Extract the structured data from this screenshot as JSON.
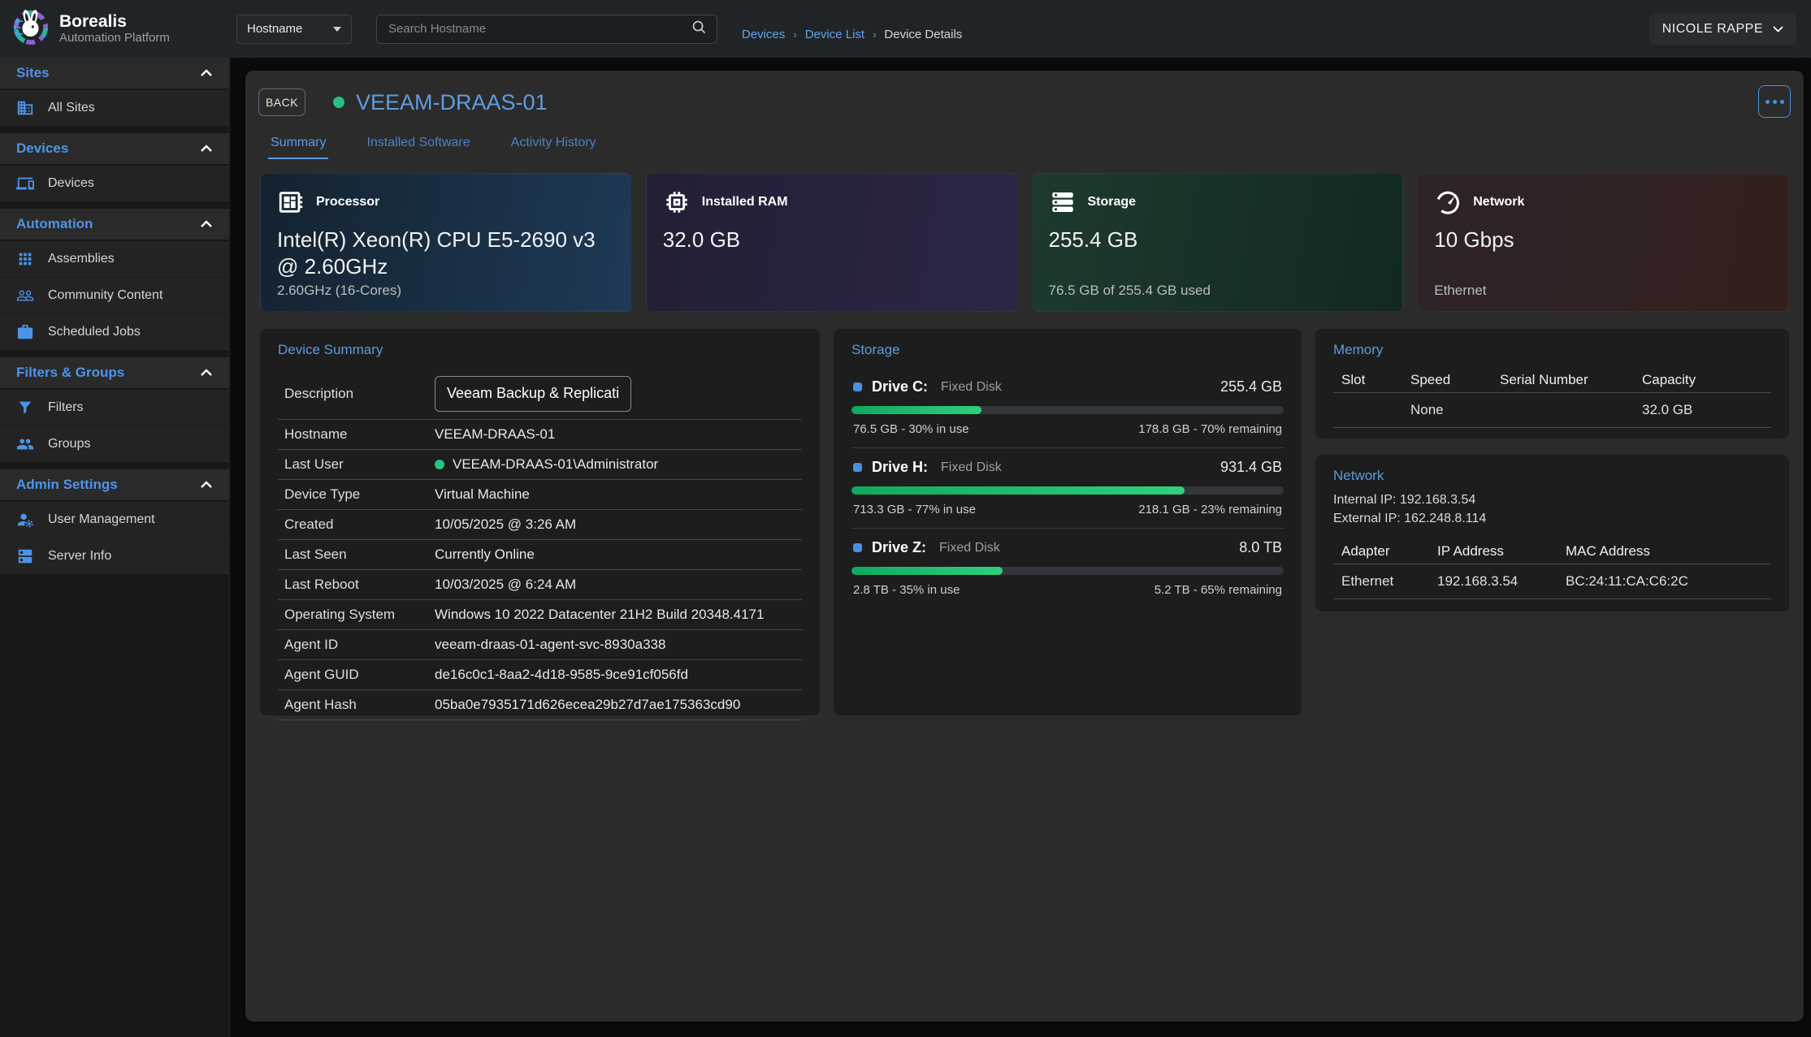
{
  "app": {
    "name": "Borealis",
    "subtitle": "Automation Platform"
  },
  "topbar": {
    "filter_dropdown": {
      "value": "Hostname"
    },
    "search": {
      "placeholder": "Search Hostname"
    },
    "breadcrumbs": [
      {
        "label": "Devices"
      },
      {
        "label": "Device List"
      },
      {
        "label": "Device Details"
      }
    ],
    "user_menu": {
      "label": "NICOLE RAPPE"
    }
  },
  "sidebar": {
    "sections": [
      {
        "title": "Sites",
        "items": [
          {
            "label": "All Sites",
            "icon": "building-icon"
          }
        ]
      },
      {
        "title": "Devices",
        "items": [
          {
            "label": "Devices",
            "icon": "devices-icon"
          }
        ]
      },
      {
        "title": "Automation",
        "items": [
          {
            "label": "Assemblies",
            "icon": "grid-icon"
          },
          {
            "label": "Community Content",
            "icon": "people-icon"
          },
          {
            "label": "Scheduled Jobs",
            "icon": "briefcase-icon"
          }
        ]
      },
      {
        "title": "Filters & Groups",
        "items": [
          {
            "label": "Filters",
            "icon": "funnel-icon"
          },
          {
            "label": "Groups",
            "icon": "group-icon"
          }
        ]
      },
      {
        "title": "Admin Settings",
        "items": [
          {
            "label": "User Management",
            "icon": "user-gear-icon"
          },
          {
            "label": "Server Info",
            "icon": "server-icon"
          }
        ]
      }
    ]
  },
  "page": {
    "back_label": "BACK",
    "device_name": "VEEAM-DRAAS-01",
    "status": "online",
    "tabs": [
      {
        "label": "Summary",
        "active": true
      },
      {
        "label": "Installed Software",
        "active": false
      },
      {
        "label": "Activity History",
        "active": false
      }
    ]
  },
  "stat_cards": [
    {
      "icon": "cpu-icon",
      "title": "Processor",
      "value": "Intel(R) Xeon(R) CPU E5-2690 v3 @ 2.60GHz",
      "subtext": "2.60GHz (16-Cores)"
    },
    {
      "icon": "ram-chip-icon",
      "title": "Installed RAM",
      "value": "32.0 GB",
      "subtext": ""
    },
    {
      "icon": "storage-stack-icon",
      "title": "Storage",
      "value": "255.4 GB",
      "subtext": "76.5 GB of 255.4 GB used"
    },
    {
      "icon": "gauge-icon",
      "title": "Network",
      "value": "10 Gbps",
      "subtext": "Ethernet"
    }
  ],
  "device_summary": {
    "title": "Device Summary",
    "description": {
      "label": "Description",
      "value": "Veeam Backup & Replication"
    },
    "rows": [
      {
        "label": "Hostname",
        "value": "VEEAM-DRAAS-01"
      },
      {
        "label": "Last User",
        "value": "VEEAM-DRAAS-01\\Administrator"
      },
      {
        "label": "Device Type",
        "value": "Virtual Machine"
      },
      {
        "label": "Created",
        "value": "10/05/2025 @ 3:26 AM"
      },
      {
        "label": "Last Seen",
        "value": "Currently Online"
      },
      {
        "label": "Last Reboot",
        "value": "10/03/2025 @ 6:24 AM"
      },
      {
        "label": "Operating System",
        "value": "Windows 10 2022 Datacenter 21H2 Build 20348.4171"
      },
      {
        "label": "Agent ID",
        "value": "veeam-draas-01-agent-svc-8930a338"
      },
      {
        "label": "Agent GUID",
        "value": "de16c0c1-8aa2-4d18-9585-9ce91cf056fd"
      },
      {
        "label": "Agent Hash",
        "value": "05ba0e7935171d626ecea29b27d7ae175363cd90"
      }
    ]
  },
  "storage_panel": {
    "title": "Storage",
    "drives": [
      {
        "name": "Drive C:",
        "type": "Fixed Disk",
        "size": "255.4 GB",
        "used_percent": 30,
        "used_text": "76.5 GB - 30% in use",
        "remaining_text": "178.8 GB - 70% remaining"
      },
      {
        "name": "Drive H:",
        "type": "Fixed Disk",
        "size": "931.4 GB",
        "used_percent": 77,
        "used_text": "713.3 GB - 77% in use",
        "remaining_text": "218.1 GB - 23% remaining"
      },
      {
        "name": "Drive Z:",
        "type": "Fixed Disk",
        "size": "8.0 TB",
        "used_percent": 35,
        "used_text": "2.8 TB - 35% in use",
        "remaining_text": "5.2 TB - 65% remaining"
      }
    ]
  },
  "memory_panel": {
    "title": "Memory",
    "columns": [
      "Slot",
      "Speed",
      "Serial Number",
      "Capacity"
    ],
    "rows": [
      {
        "slot": "",
        "speed": "None",
        "serial": "",
        "capacity": "32.0 GB"
      }
    ]
  },
  "network_panel": {
    "title": "Network",
    "internal_ip": "Internal IP: 192.168.3.54",
    "external_ip": "External IP: 162.248.8.114",
    "columns": [
      "Adapter",
      "IP Address",
      "MAC Address"
    ],
    "rows": [
      {
        "adapter": "Ethernet",
        "ip": "192.168.3.54",
        "mac": "BC:24:11:CA:C6:2C"
      }
    ]
  },
  "colors": {
    "accent_blue": "#4d94e8",
    "link_blue": "#5f9ce0",
    "online_green": "#26c281",
    "bar_green_start": "#0fa95f",
    "bar_green_end": "#2fd07c",
    "card_processor": "#1e3a57",
    "card_ram": "#2d2546",
    "card_storage": "#1e3a2d",
    "card_network": "#33201c"
  }
}
